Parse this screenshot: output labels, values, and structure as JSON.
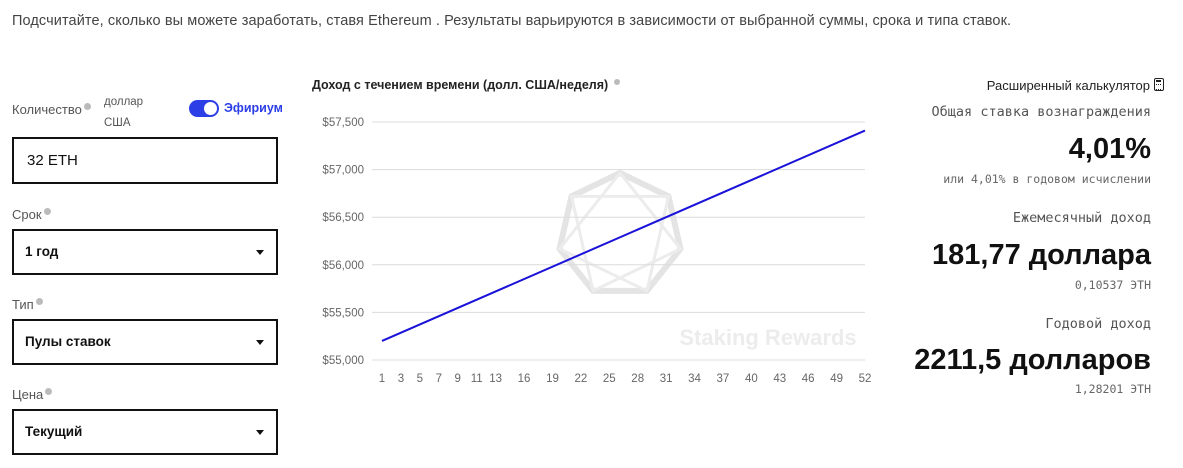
{
  "intro": "Подсчитайте, сколько вы можете заработать, ставя Ethereum . Результаты варьируются в зависимости от выбранной суммы, срока и типа ставок.",
  "form": {
    "amount_label": "Количество",
    "unit_label": "доллар США",
    "toggle_label": "Эфириум",
    "toggle_on": true,
    "amount_value": "32 ETH",
    "term_label": "Срок",
    "term_value": "1 год",
    "type_label": "Тип",
    "type_value": "Пулы ставок",
    "price_label": "Цена",
    "price_value": "Текущий"
  },
  "chart_data": {
    "type": "line",
    "title": "Доход с течением времени (долл. США/неделя)",
    "watermark": "Staking Rewards",
    "x_ticks": [
      "1",
      "3",
      "5",
      "7",
      "9",
      "11",
      "13",
      "16",
      "19",
      "22",
      "25",
      "28",
      "31",
      "34",
      "37",
      "40",
      "43",
      "46",
      "49",
      "52"
    ],
    "y_ticks": [
      "$57,500",
      "$57,000",
      "$56,500",
      "$56,000",
      "$55,500",
      "$55,000"
    ],
    "ylim": [
      55000,
      57500
    ],
    "xlim": [
      1,
      52
    ],
    "series": [
      {
        "x": [
          1,
          52
        ],
        "values": [
          55200,
          57410
        ]
      }
    ],
    "color": "#1a12d9"
  },
  "right": {
    "advanced_label": "Расширенный калькулятор",
    "reward_rate_label": "Общая ставка вознаграждения",
    "reward_rate_value": "4,01%",
    "reward_rate_sub": "или 4,01% в годовом исчислении",
    "monthly_label": "Ежемесячный доход",
    "monthly_value": "181,77 доллара",
    "monthly_sub": "0,10537 ЭТН",
    "yearly_label": "Годовой доход",
    "yearly_value": "2211,5 долларов",
    "yearly_sub": "1,28201 ЭТН"
  }
}
